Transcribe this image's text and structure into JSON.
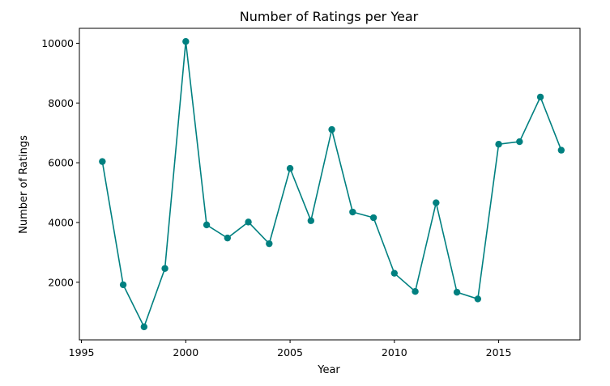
{
  "chart_data": {
    "type": "line",
    "title": "Number of Ratings per Year",
    "xlabel": "Year",
    "ylabel": "Number of Ratings",
    "xlim": [
      1994.9,
      2018.9
    ],
    "ylim": [
      70,
      10500
    ],
    "x_ticks": [
      1995,
      2000,
      2005,
      2010,
      2015
    ],
    "y_ticks": [
      2000,
      4000,
      6000,
      8000,
      10000
    ],
    "x_tick_labels": [
      "1995",
      "2000",
      "2005",
      "2010",
      "2015"
    ],
    "y_tick_labels": [
      "2000",
      "4000",
      "6000",
      "8000",
      "10000"
    ],
    "grid": false,
    "legend": false,
    "series": [
      {
        "color": "#008080",
        "marker": "circle",
        "x": [
          1996,
          1997,
          1998,
          1999,
          2000,
          2001,
          2002,
          2003,
          2004,
          2005,
          2006,
          2007,
          2008,
          2009,
          2010,
          2011,
          2012,
          2013,
          2014,
          2015,
          2016,
          2017,
          2018
        ],
        "values": [
          6040,
          1915,
          507,
          2460,
          10060,
          3920,
          3480,
          4015,
          3290,
          5810,
          4060,
          7110,
          4350,
          4160,
          2300,
          1690,
          4660,
          1665,
          1440,
          6620,
          6705,
          8200,
          6420
        ]
      }
    ]
  }
}
